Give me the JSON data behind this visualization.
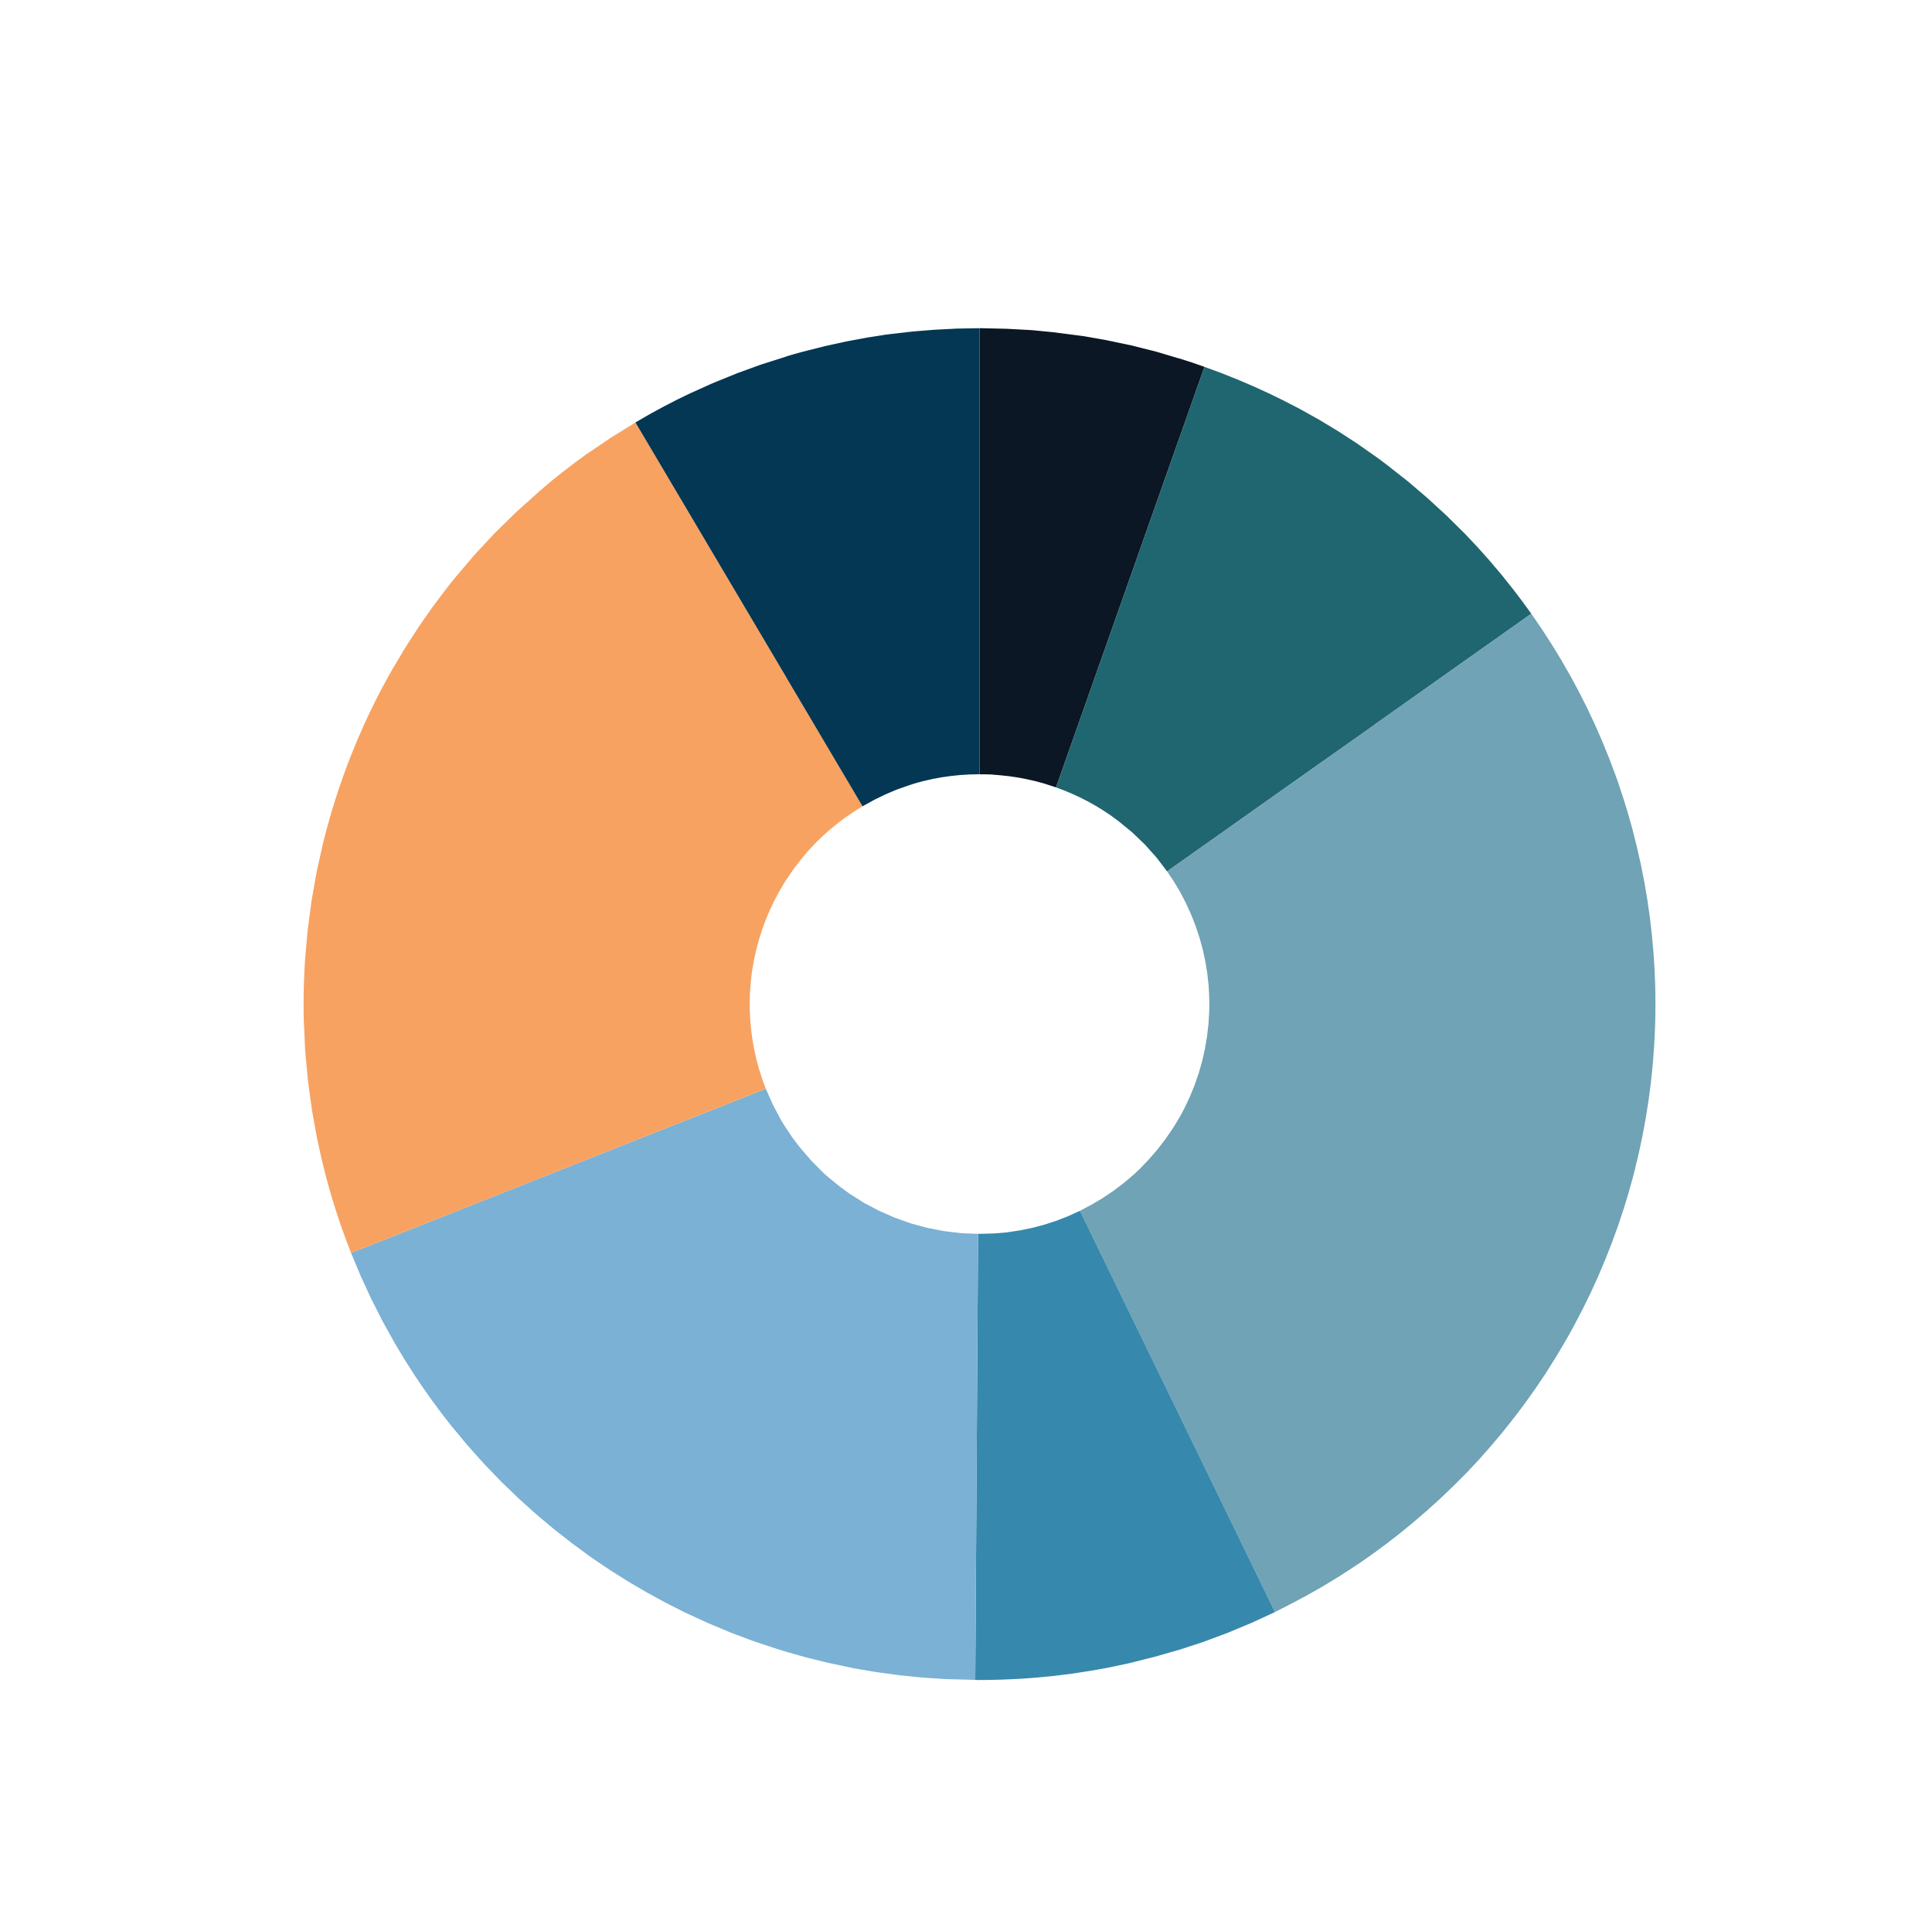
{
  "chart_data": {
    "type": "donut",
    "categories": [
      null,
      null,
      null,
      null,
      null,
      null,
      null
    ],
    "values": [
      5.4,
      9.8,
      27.6,
      7.3,
      18.9,
      22.5,
      8.5
    ],
    "colors": [
      "#0b1724",
      "#206670",
      "#6fa3b5",
      "#3788ad",
      "#7bb1d4",
      "#f8a261",
      "#043754"
    ]
  }
}
